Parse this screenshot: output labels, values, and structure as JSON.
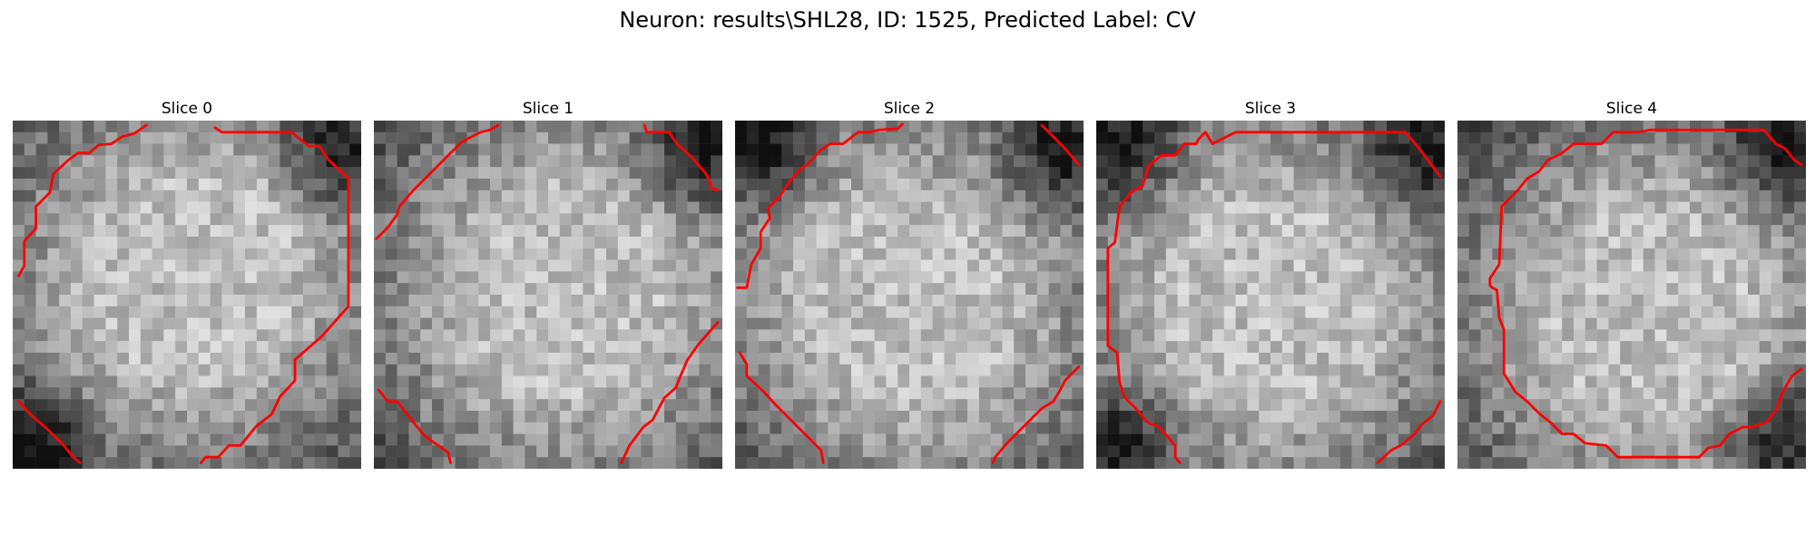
{
  "figure": {
    "title": "Neuron: results\\SHL28, ID: 1525, Predicted Label: CV",
    "contour_color": "#ff0000",
    "colormap": "gray",
    "panels": [
      {
        "title": "Slice 0",
        "seed": 11,
        "bright_center": [
          0.52,
          0.45
        ],
        "dark_corners": [
          "bottom-left",
          "top-right"
        ]
      },
      {
        "title": "Slice 1",
        "seed": 23,
        "bright_center": [
          0.55,
          0.5
        ],
        "dark_corners": [
          "top-right"
        ]
      },
      {
        "title": "Slice 2",
        "seed": 37,
        "bright_center": [
          0.5,
          0.52
        ],
        "dark_corners": [
          "top-right",
          "top-left"
        ]
      },
      {
        "title": "Slice 3",
        "seed": 41,
        "bright_center": [
          0.5,
          0.52
        ],
        "dark_corners": [
          "top-left",
          "bottom-left",
          "top-right"
        ]
      },
      {
        "title": "Slice 4",
        "seed": 53,
        "bright_center": [
          0.55,
          0.55
        ],
        "dark_corners": [
          "top-right",
          "bottom-right"
        ]
      }
    ]
  }
}
